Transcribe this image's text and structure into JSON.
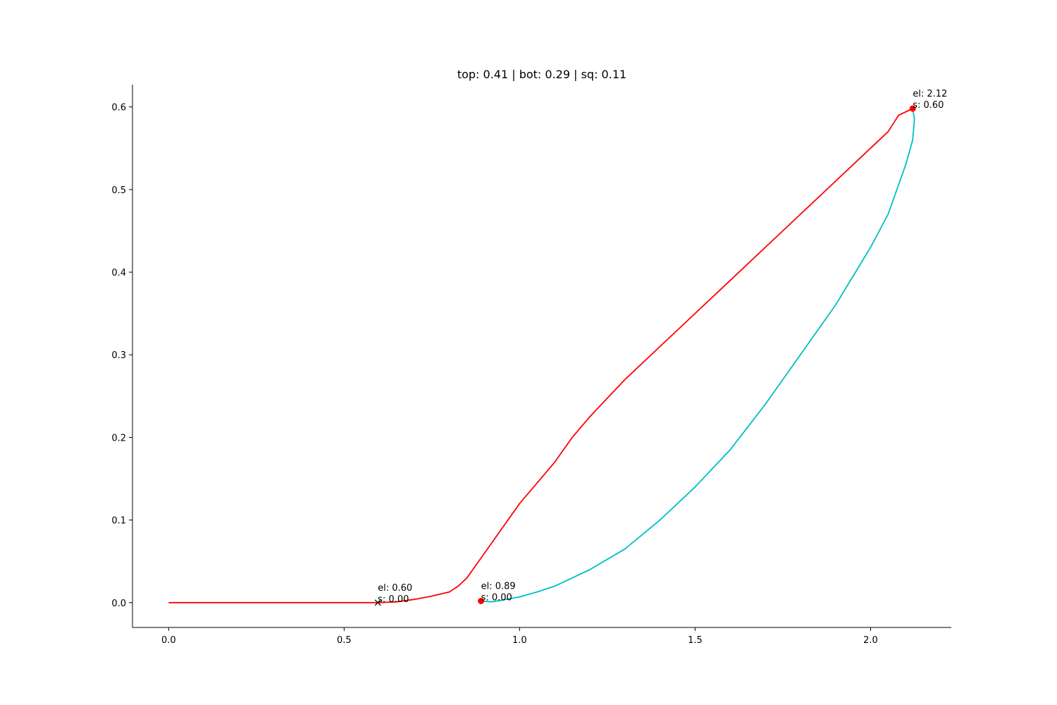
{
  "chart_data": {
    "type": "line",
    "title": "top: 0.41 | bot: 0.29 | sq: 0.11",
    "xlabel": "",
    "ylabel": "",
    "xlim": [
      -0.103,
      2.23
    ],
    "ylim": [
      -0.03,
      0.627
    ],
    "xticks": [
      0.0,
      0.5,
      1.0,
      1.5,
      2.0
    ],
    "xtick_labels": [
      "0.0",
      "0.5",
      "1.0",
      "1.5",
      "2.0"
    ],
    "yticks": [
      0.0,
      0.1,
      0.2,
      0.3,
      0.4,
      0.5,
      0.6
    ],
    "ytick_labels": [
      "0.0",
      "0.1",
      "0.2",
      "0.3",
      "0.4",
      "0.5",
      "0.6"
    ],
    "grid": false,
    "spines": "left-bottom",
    "series": [
      {
        "color": "#ff0000",
        "x": [
          0.0,
          0.3,
          0.596,
          0.65,
          0.7,
          0.75,
          0.8,
          0.825,
          0.85,
          0.875,
          0.9,
          0.95,
          1.0,
          1.05,
          1.1,
          1.15,
          1.2,
          1.3,
          1.4,
          1.5,
          1.6,
          1.7,
          1.8,
          1.9,
          2.0,
          2.05,
          2.08,
          2.12
        ],
        "y": [
          0.0,
          0.0,
          0.0,
          0.001,
          0.004,
          0.008,
          0.013,
          0.02,
          0.03,
          0.045,
          0.06,
          0.09,
          0.12,
          0.145,
          0.17,
          0.2,
          0.225,
          0.27,
          0.31,
          0.35,
          0.39,
          0.43,
          0.47,
          0.51,
          0.55,
          0.57,
          0.59,
          0.598
        ]
      },
      {
        "color": "#00bfbf",
        "x": [
          2.12,
          2.125,
          2.12,
          2.1,
          2.05,
          2.0,
          1.9,
          1.8,
          1.7,
          1.6,
          1.5,
          1.4,
          1.3,
          1.2,
          1.1,
          1.05,
          1.0,
          0.95,
          0.92,
          0.89
        ],
        "y": [
          0.598,
          0.585,
          0.56,
          0.53,
          0.47,
          0.43,
          0.36,
          0.3,
          0.24,
          0.185,
          0.14,
          0.1,
          0.065,
          0.04,
          0.02,
          0.013,
          0.007,
          0.003,
          0.001,
          0.002
        ]
      }
    ],
    "markers": [
      {
        "type": "x",
        "x": 0.596,
        "y": 0.0,
        "color": "#000000"
      },
      {
        "type": "dot",
        "x": 0.89,
        "y": 0.002,
        "color": "#ff0000"
      },
      {
        "type": "dot",
        "x": 2.12,
        "y": 0.598,
        "color": "#ff0000"
      }
    ],
    "annotations": [
      {
        "x": 0.596,
        "y": 0.0,
        "lines": [
          "el: 0.60",
          "s: 0.00"
        ]
      },
      {
        "x": 0.89,
        "y": 0.002,
        "lines": [
          "el: 0.89",
          "s: 0.00"
        ]
      },
      {
        "x": 2.12,
        "y": 0.598,
        "lines": [
          "el: 2.12",
          "s: 0.60"
        ]
      }
    ]
  }
}
